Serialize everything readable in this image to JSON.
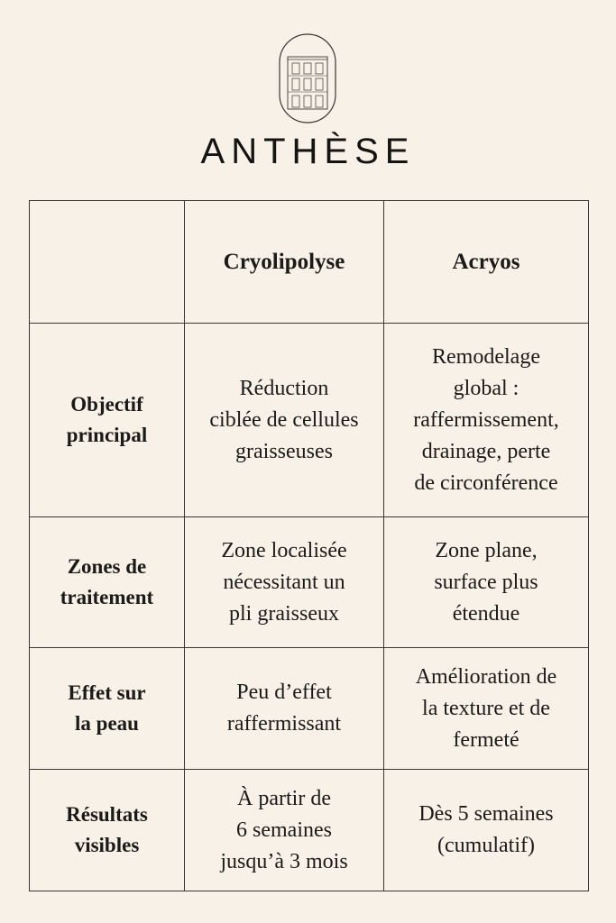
{
  "brand": {
    "name": "ANTHÈSE",
    "logo_icon": "building-facade-arch-icon"
  },
  "table": {
    "columns": [
      "",
      "Cryolipolyse",
      "Acryos"
    ],
    "rows": [
      {
        "label": "Objectif\nprincipal",
        "cryolipolyse": "Réduction\nciblée de cellules\ngraisseuses",
        "acryos": "Remodelage\nglobal :\nraffermissement,\ndrainage, perte\nde circonférence"
      },
      {
        "label": "Zones de\ntraitement",
        "cryolipolyse": "Zone localisée\nnécessitant un\npli graisseux",
        "acryos": "Zone plane,\nsurface plus\nétendue"
      },
      {
        "label": "Effet sur\nla peau",
        "cryolipolyse": "Peu d’effet\nraffermissant",
        "acryos": "Amélioration de\nla texture et de\nfermeté"
      },
      {
        "label": "Résultats\nvisibles",
        "cryolipolyse": "À partir de\n6 semaines\njusqu’à 3 mois",
        "acryos": "Dès 5 semaines\n(cumulatif)"
      }
    ]
  },
  "colors": {
    "background": "#f8f1e7",
    "text": "#1c1a18",
    "border": "#3a3632"
  }
}
